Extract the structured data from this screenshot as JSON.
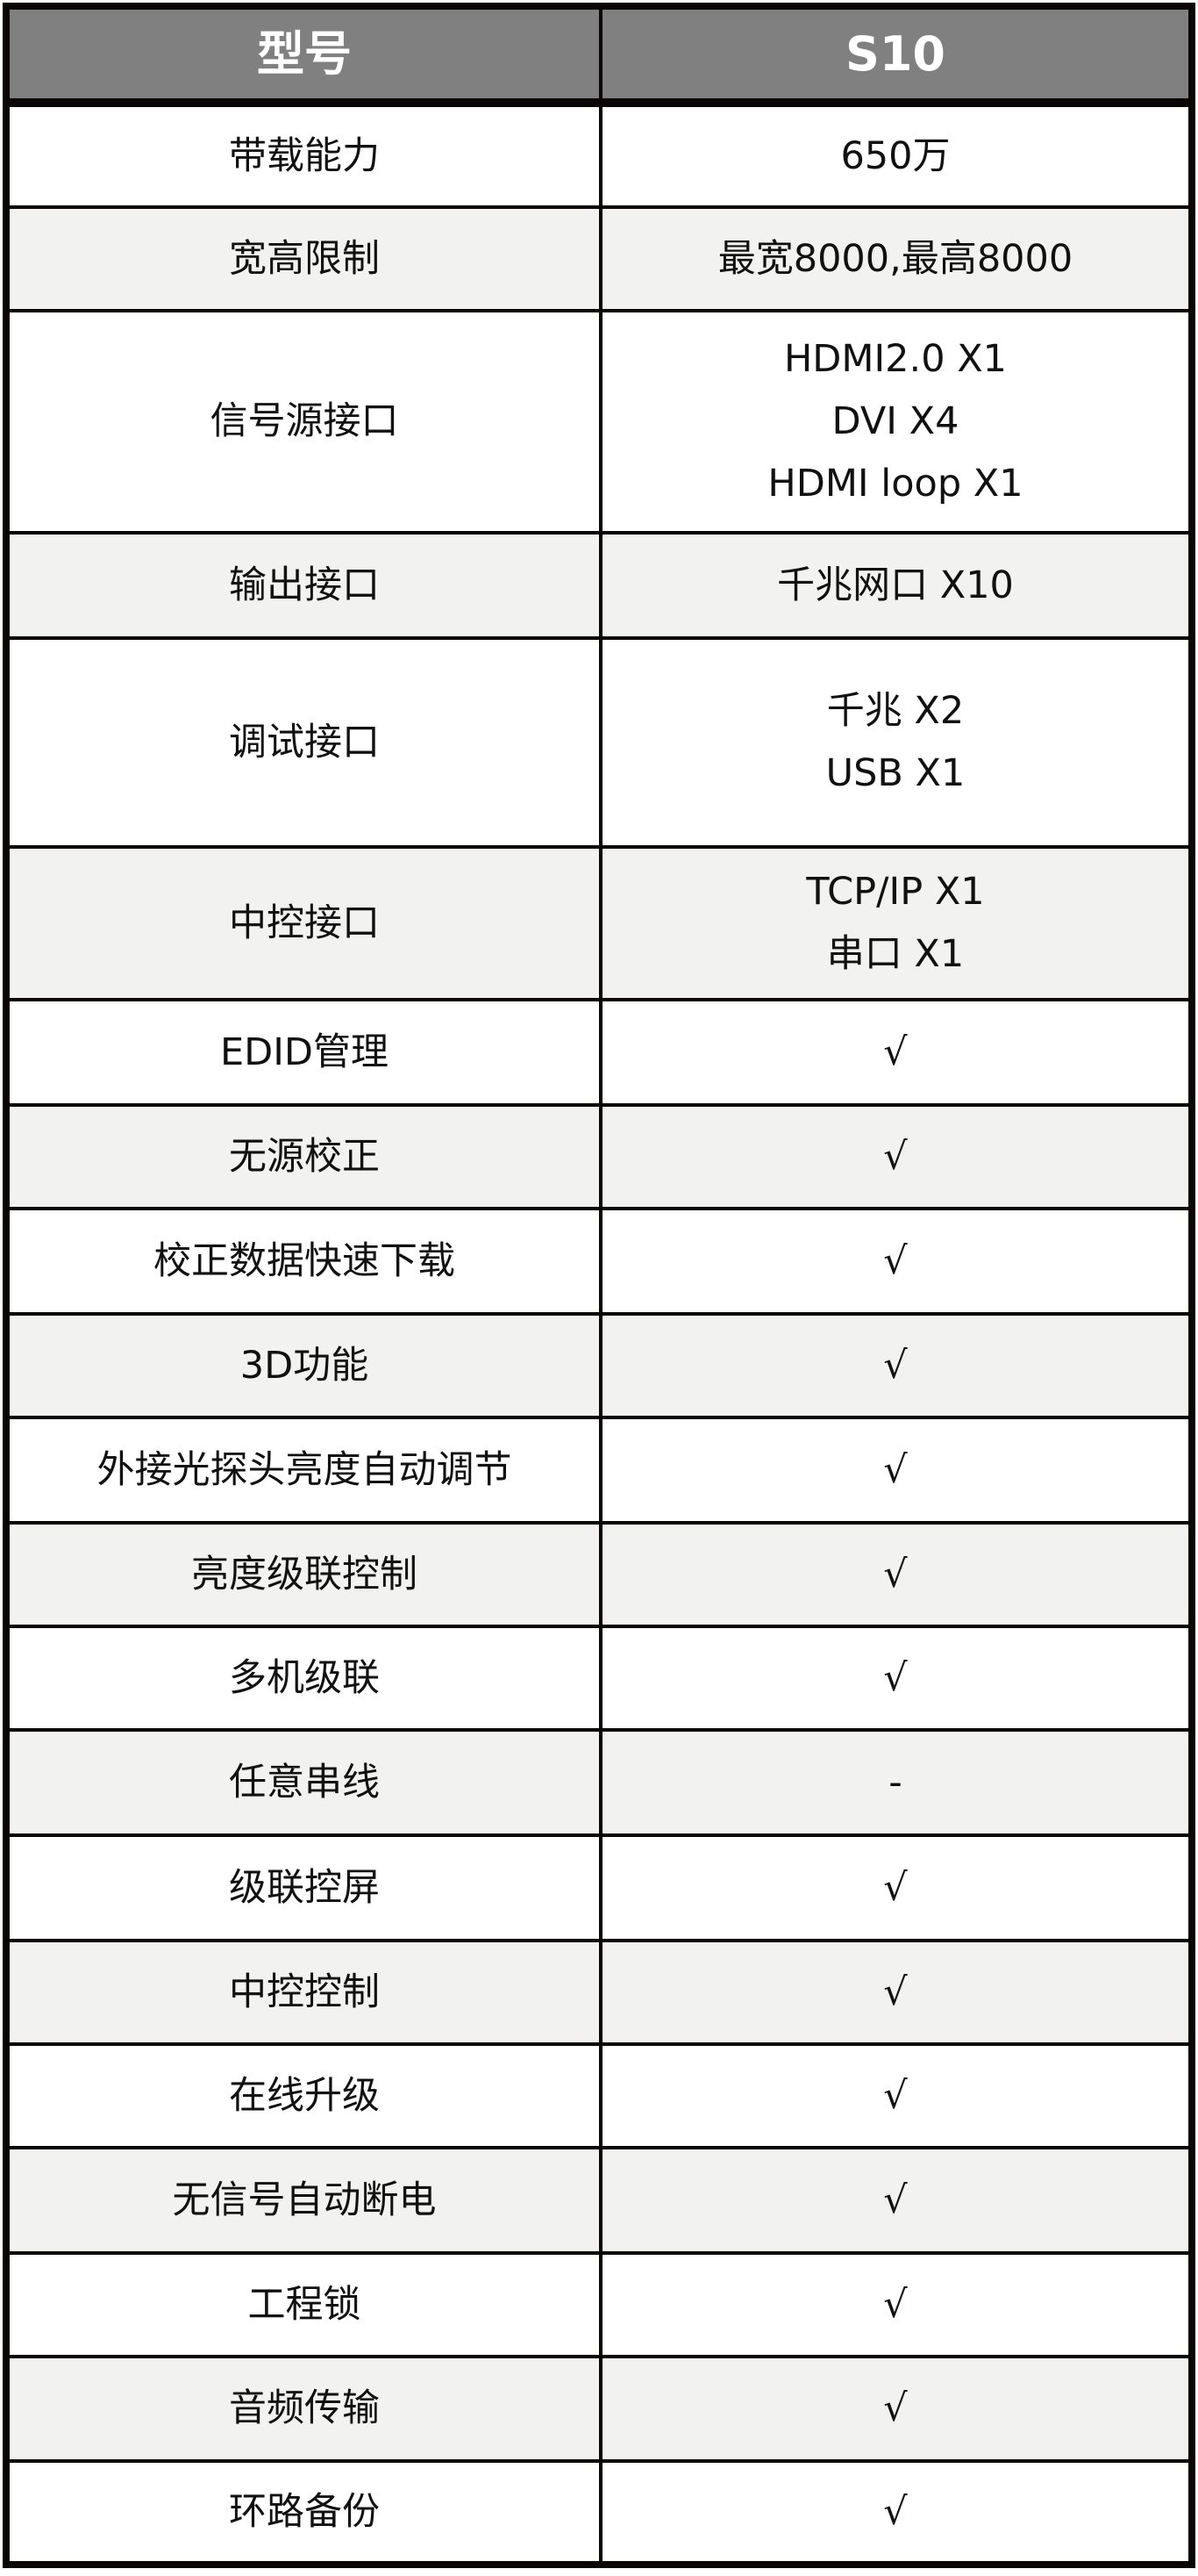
{
  "header": {
    "col1": "型号",
    "col2": "S10"
  },
  "rows": [
    {
      "label": "带载能力",
      "value": [
        "650万"
      ]
    },
    {
      "label": "宽高限制",
      "value": [
        "最宽8000,最高8000"
      ]
    },
    {
      "label": "信号源接口",
      "value": [
        "HDMI2.0 X1",
        "DVI X4",
        "HDMI loop X1"
      ]
    },
    {
      "label": "输出接口",
      "value": [
        "千兆网口 X10"
      ]
    },
    {
      "label": "调试接口",
      "value": [
        "千兆 X2",
        "USB X1"
      ]
    },
    {
      "label": "中控接口",
      "value": [
        "TCP/IP X1",
        "串口 X1"
      ]
    },
    {
      "label": "EDID管理",
      "value": [
        "√"
      ]
    },
    {
      "label": "无源校正",
      "value": [
        "√"
      ]
    },
    {
      "label": "校正数据快速下载",
      "value": [
        "√"
      ]
    },
    {
      "label": "3D功能",
      "value": [
        "√"
      ]
    },
    {
      "label": "外接光探头亮度自动调节",
      "value": [
        "√"
      ]
    },
    {
      "label": "亮度级联控制",
      "value": [
        "√"
      ]
    },
    {
      "label": "多机级联",
      "value": [
        "√"
      ]
    },
    {
      "label": "任意串线",
      "value": [
        "-"
      ]
    },
    {
      "label": "级联控屏",
      "value": [
        "√"
      ]
    },
    {
      "label": "中控控制",
      "value": [
        "√"
      ]
    },
    {
      "label": "在线升级",
      "value": [
        "√"
      ]
    },
    {
      "label": "无信号自动断电",
      "value": [
        "√"
      ]
    },
    {
      "label": "工程锁",
      "value": [
        "√"
      ]
    },
    {
      "label": "音频传输",
      "value": [
        "√"
      ]
    },
    {
      "label": "环路备份",
      "value": [
        "√"
      ]
    }
  ]
}
